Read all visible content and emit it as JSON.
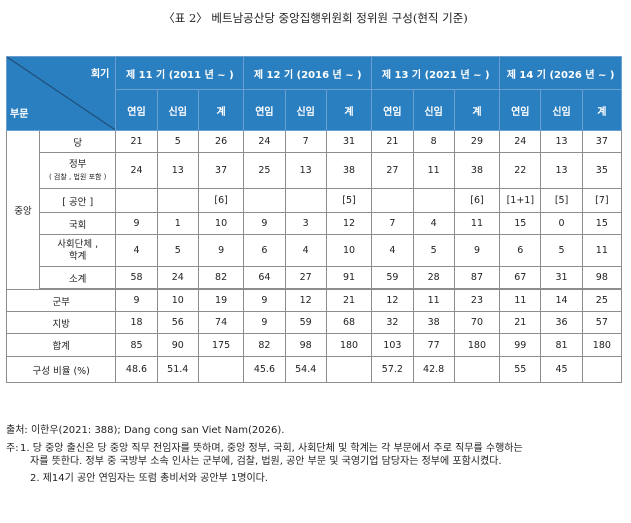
{
  "caption": "〈표 2〉 베트남공산당 중앙집행위원회 정위원 구성(현직 기준)",
  "header": {
    "hoegi": "회기",
    "bumun": "부문",
    "terms": [
      "제 11 기 (2011 년 ~ )",
      "제 12 기 (2016 년 ~ )",
      "제 13 기 (2021 년 ~ )",
      "제 14 기 (2026 년 ~ )"
    ],
    "sub": [
      "연임",
      "신임",
      "계"
    ]
  },
  "groups": {
    "central": "중앙"
  },
  "rows": {
    "dang": {
      "label": "당",
      "values": [
        "21",
        "5",
        "26",
        "24",
        "7",
        "31",
        "21",
        "8",
        "29",
        "24",
        "13",
        "37"
      ]
    },
    "jeongbu": {
      "label1": "정부",
      "label2": "( 검찰 , 법원 포함 )",
      "values": [
        "24",
        "13",
        "37",
        "25",
        "13",
        "38",
        "27",
        "11",
        "38",
        "22",
        "13",
        "35"
      ]
    },
    "gongan": {
      "label": "[ 공안 ]",
      "values": [
        "",
        "",
        "[6]",
        "",
        "",
        "[5]",
        "",
        "",
        "[6]",
        "[1+1]",
        "[5]",
        "[7]"
      ]
    },
    "gukhoe": {
      "label": "국회",
      "values": [
        "9",
        "1",
        "10",
        "9",
        "3",
        "12",
        "7",
        "4",
        "11",
        "15",
        "0",
        "15"
      ]
    },
    "sahoe": {
      "label1": "사회단체 ,",
      "label2": "학계",
      "values": [
        "4",
        "5",
        "9",
        "6",
        "4",
        "10",
        "4",
        "5",
        "9",
        "6",
        "5",
        "11"
      ]
    },
    "sogye": {
      "label": "소계",
      "values": [
        "58",
        "24",
        "82",
        "64",
        "27",
        "91",
        "59",
        "28",
        "87",
        "67",
        "31",
        "98"
      ]
    },
    "gunbu": {
      "label": "군부",
      "values": [
        "9",
        "10",
        "19",
        "9",
        "12",
        "21",
        "12",
        "11",
        "23",
        "11",
        "14",
        "25"
      ]
    },
    "jibang": {
      "label": "지방",
      "values": [
        "18",
        "56",
        "74",
        "9",
        "59",
        "68",
        "32",
        "38",
        "70",
        "21",
        "36",
        "57"
      ]
    },
    "hapgye": {
      "label": "합계",
      "values": [
        "85",
        "90",
        "175",
        "82",
        "98",
        "180",
        "103",
        "77",
        "180",
        "99",
        "81",
        "180"
      ]
    },
    "ratio": {
      "label": "구성 비율 (%)",
      "values": [
        "48.6",
        "51.4",
        "",
        "45.6",
        "54.4",
        "",
        "57.2",
        "42.8",
        "",
        "55",
        "45",
        ""
      ]
    }
  },
  "notes": {
    "source": "출처: 이한우(2021: 388); Dang cong san Viet Nam(2026).",
    "prefix": "주:",
    "n1a": "1. 당 중앙 출신은 당 중앙 직무 전임자를 뜻하며, 중앙 정부, 국회, 사회단체 및 학계는 각 부문에서 주로 직무를 수행하는",
    "n1b": "자를 뜻한다. 정부 중 국방부 소속 인사는 군부에, 검찰, 법원, 공안 부문 및 국영기업 담당자는 정부에 포함시켰다.",
    "n2": "2. 제14기 공안 연임자는 또럼 총비서와 공안부 1명이다."
  }
}
